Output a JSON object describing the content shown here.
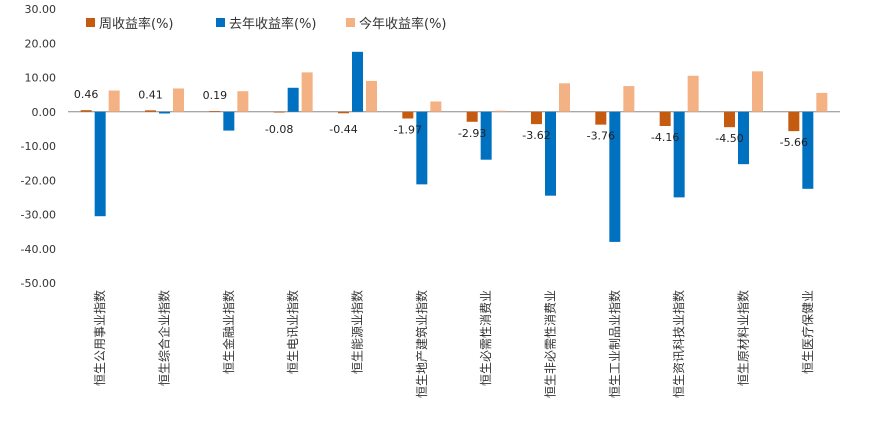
{
  "chart_data": {
    "type": "bar",
    "title": "",
    "xlabel": "",
    "ylabel": "",
    "ylim": [
      -50,
      30
    ],
    "yticks": [
      30,
      20,
      10,
      0,
      -10,
      -20,
      -30,
      -40,
      -50
    ],
    "ytick_labels": [
      "30.00",
      "20.00",
      "10.00",
      "0.00",
      "-10.00",
      "-20.00",
      "-30.00",
      "-40.00",
      "-50.00"
    ],
    "legend_position": "top",
    "grid": false,
    "categories": [
      "恒生公用事业指数",
      "恒生综合企业指数",
      "恒生金融业指数",
      "恒生电讯业指数",
      "恒生能源业指数",
      "恒生地产建筑业指数",
      "恒生必需性消费业",
      "恒生非必需性消费业",
      "恒生工业制品业指数",
      "恒生资讯科技业指数",
      "恒生原材料业指数",
      "恒生医疗保健业"
    ],
    "series": [
      {
        "name": "周收益率(%)",
        "color": "#C55A11",
        "values": [
          0.46,
          0.41,
          0.19,
          -0.08,
          -0.44,
          -1.97,
          -2.93,
          -3.62,
          -3.76,
          -4.16,
          -4.5,
          -5.66
        ],
        "data_labels": [
          "0.46",
          "0.41",
          "0.19",
          "-0.08",
          "-0.44",
          "-1.97",
          "-2.93",
          "-3.62",
          "-3.76",
          "-4.16",
          "-4.50",
          "-5.66"
        ]
      },
      {
        "name": "去年收益率(%)",
        "color": "#0070C0",
        "values": [
          -30.5,
          -0.5,
          -5.5,
          7.0,
          17.5,
          -21.2,
          -14.0,
          -24.5,
          -38.0,
          -25.0,
          -15.3,
          -22.5
        ]
      },
      {
        "name": "今年收益率(%)",
        "color": "#F4B183",
        "values": [
          6.2,
          6.8,
          6.0,
          11.5,
          9.0,
          3.0,
          0.3,
          8.3,
          7.5,
          10.5,
          11.8,
          5.5
        ]
      }
    ]
  }
}
